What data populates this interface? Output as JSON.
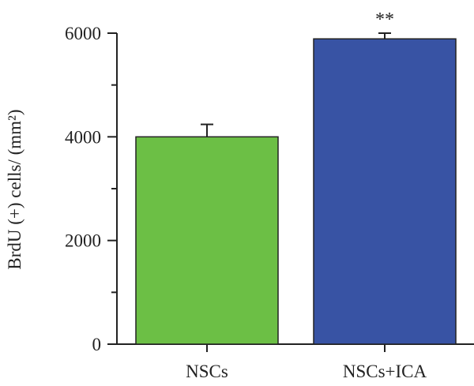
{
  "chart_data": {
    "type": "bar",
    "categories": [
      "NSCs",
      "NSCs+ICA"
    ],
    "values": [
      4000,
      5890
    ],
    "errors": [
      240,
      110
    ],
    "significance": [
      "",
      "**"
    ],
    "colors": [
      "#6cbf45",
      "#3853a4"
    ],
    "ylabel": "BrdU (+) cells/ (mm²)",
    "xlabel": "",
    "ylim": [
      0,
      6000
    ],
    "yticks": [
      0,
      2000,
      4000,
      6000
    ],
    "ytick_labels": [
      "0",
      "2000",
      "4000",
      "6000"
    ],
    "grid": false,
    "legend": "none"
  }
}
